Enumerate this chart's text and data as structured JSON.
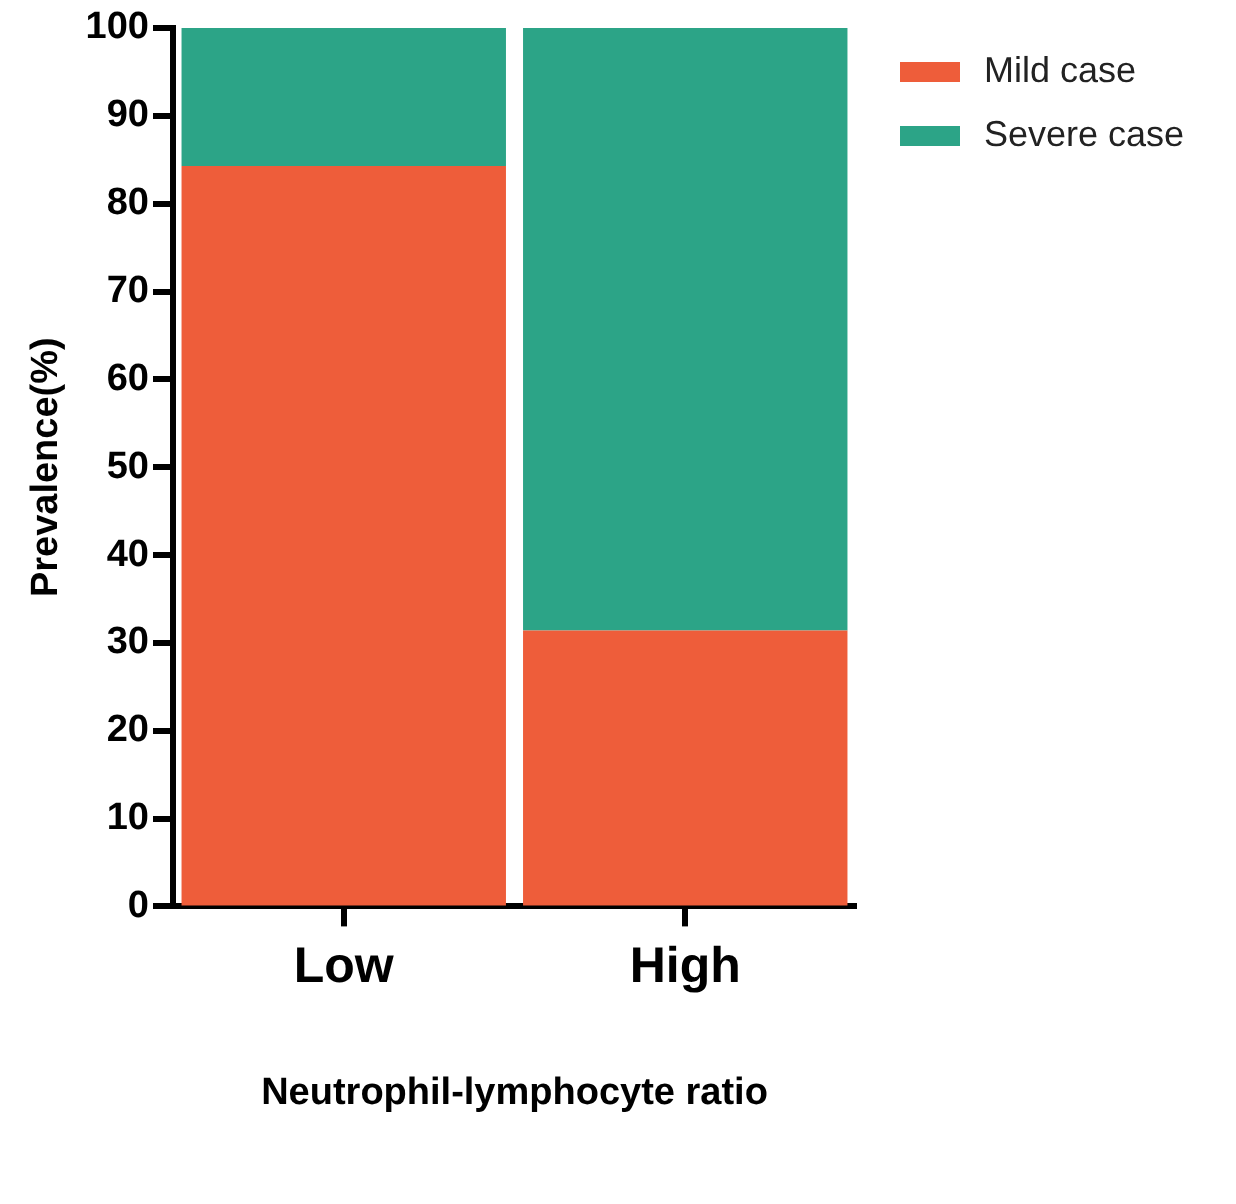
{
  "chart_data": {
    "type": "bar",
    "stacked": true,
    "xlabel": "Neutrophil-lymphocyte ratio",
    "ylabel": "Prevalence(%)",
    "categories": [
      "Low",
      "High"
    ],
    "series": [
      {
        "name": "Mild case",
        "color": "#ee5d3a",
        "values": [
          84.3,
          31.4
        ]
      },
      {
        "name": "Severe case",
        "color": "#2ca487",
        "values": [
          15.7,
          68.6
        ]
      }
    ],
    "ylim": [
      0,
      100
    ],
    "yticks": [
      0,
      10,
      20,
      30,
      40,
      50,
      60,
      70,
      80,
      90,
      100
    ],
    "grid": false,
    "legend": "top right"
  }
}
